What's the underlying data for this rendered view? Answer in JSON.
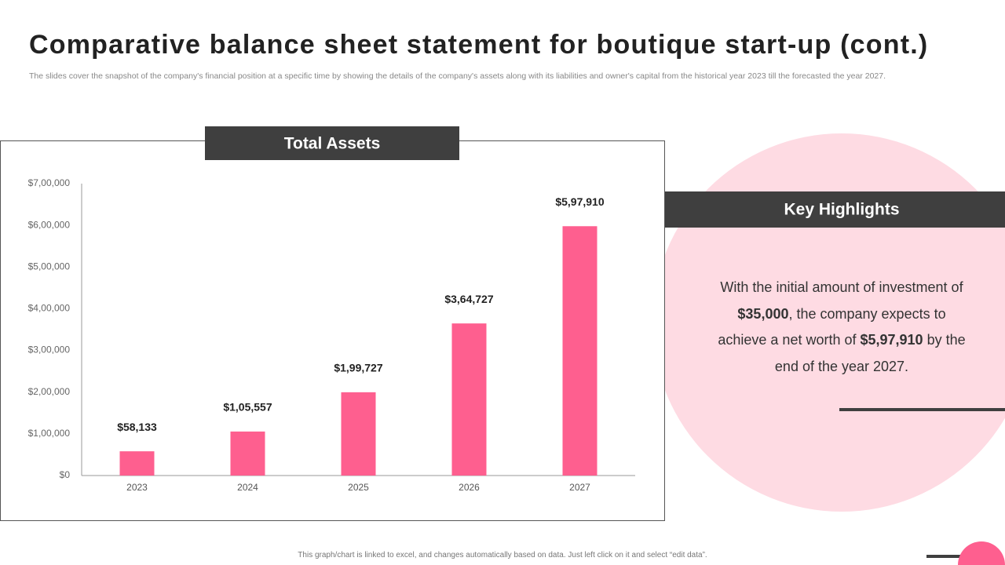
{
  "title": "Comparative balance sheet statement for boutique start-up (cont.)",
  "subtitle": "The slides cover the snapshot of the company's financial position at a specific time by showing the details of the company's assets along with its liabilities and owner's capital from the historical year 2023 till the forecasted the year 2027.",
  "chart_data": {
    "type": "bar",
    "title": "Total Assets",
    "categories": [
      "2023",
      "2024",
      "2025",
      "2026",
      "2027"
    ],
    "values": [
      58133,
      105557,
      199727,
      364727,
      597910
    ],
    "value_labels": [
      "$58,133",
      "$1,05,557",
      "$1,99,727",
      "$3,64,727",
      "$5,97,910"
    ],
    "color": "#fe5f8f",
    "ylim": [
      0,
      700000
    ],
    "yticks": [
      {
        "value": 0,
        "label": "$0"
      },
      {
        "value": 100000,
        "label": "$1,00,000"
      },
      {
        "value": 200000,
        "label": "$2,00,000"
      },
      {
        "value": 300000,
        "label": "$3,00,000"
      },
      {
        "value": 400000,
        "label": "$4,00,000"
      },
      {
        "value": 500000,
        "label": "$5,00,000"
      },
      {
        "value": 600000,
        "label": "$6,00,000"
      },
      {
        "value": 700000,
        "label": "$7,00,000"
      }
    ],
    "grid": false
  },
  "highlights": {
    "title": "Key Highlights",
    "text": [
      "With the initial amount of investment of ",
      "$35,000",
      ", the company expects to achieve a net worth of ",
      "$5,97,910",
      " by the end of the year 2027."
    ]
  },
  "footer": "This graph/chart is linked to excel, and changes automatically based on data. Just left click on it and select “edit data”."
}
